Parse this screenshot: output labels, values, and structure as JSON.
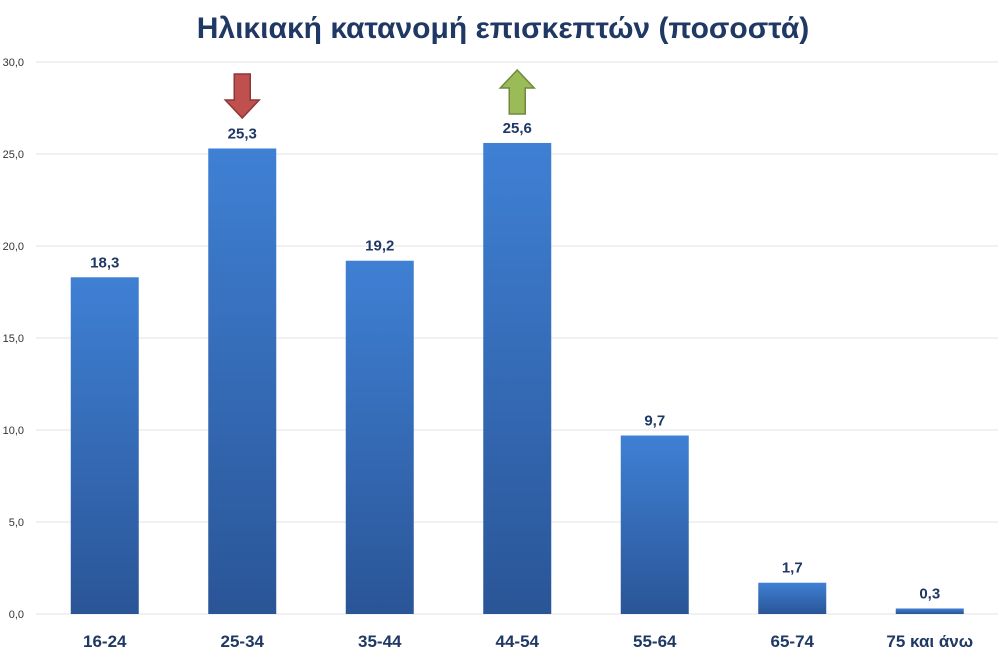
{
  "chart_data": {
    "type": "bar",
    "title": "Ηλικιακή κατανομή επισκεπτών (ποσοστά)",
    "xlabel": "",
    "ylabel": "",
    "categories": [
      "16-24",
      "25-34",
      "35-44",
      "44-54",
      "55-64",
      "65-74",
      "75 και άνω"
    ],
    "values": [
      18.3,
      25.3,
      19.2,
      25.6,
      9.7,
      1.7,
      0.3
    ],
    "data_labels": [
      "18,3",
      "25,3",
      "19,2",
      "25,6",
      "9,7",
      "1,7",
      "0,3"
    ],
    "ylim": [
      0,
      30
    ],
    "y_ticks": [
      0,
      5,
      10,
      15,
      20,
      25,
      30
    ],
    "y_tick_labels": [
      "0,0",
      "5,0",
      "10,0",
      "15,0",
      "20,0",
      "25,0",
      "30,0"
    ],
    "grid": true,
    "legend": "none",
    "annotations": [
      {
        "type": "arrow-down",
        "category": "25-34",
        "color": "#c0504d",
        "icon": "down-arrow-icon"
      },
      {
        "type": "arrow-up",
        "category": "44-54",
        "color": "#9bbb59",
        "icon": "up-arrow-icon"
      }
    ]
  },
  "colors": {
    "title": "#1f3864",
    "bar_top": "#3f80d4",
    "bar_bottom": "#2a5597",
    "grid": "#e3e3e3",
    "arrow_down": "#c0504d",
    "arrow_down_stroke": "#8c3836",
    "arrow_up": "#9bbb59",
    "arrow_up_stroke": "#6f8a3c"
  }
}
